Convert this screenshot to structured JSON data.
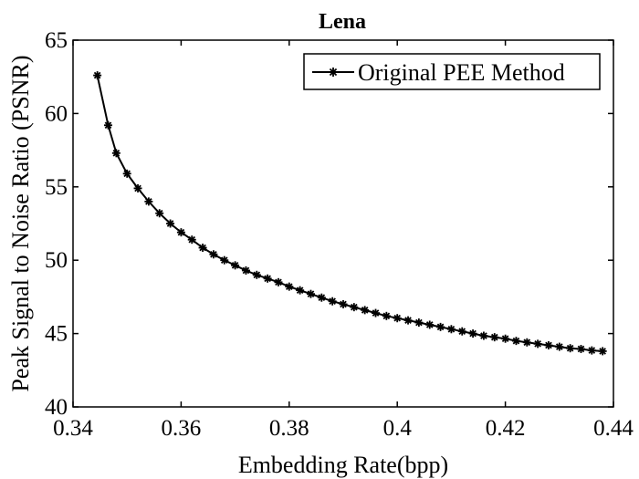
{
  "chart_data": {
    "type": "line",
    "title": "Lena",
    "xlabel": "Embedding Rate(bpp)",
    "ylabel": "Peak Signal to Noise Ratio (PSNR)",
    "xlim": [
      0.34,
      0.44
    ],
    "ylim": [
      40,
      65
    ],
    "xticks": [
      "0.34",
      "0.36",
      "0.38",
      "0.4",
      "0.42",
      "0.44"
    ],
    "yticks": [
      "40",
      "45",
      "50",
      "55",
      "60",
      "65"
    ],
    "grid": false,
    "legend_position": "top-right",
    "series": [
      {
        "name": "Original PEE Method",
        "color": "#000000",
        "marker": "asterisk",
        "x": [
          0.3445,
          0.3465,
          0.348,
          0.35,
          0.352,
          0.354,
          0.356,
          0.358,
          0.36,
          0.362,
          0.364,
          0.366,
          0.368,
          0.37,
          0.372,
          0.374,
          0.376,
          0.378,
          0.38,
          0.382,
          0.384,
          0.386,
          0.388,
          0.39,
          0.392,
          0.394,
          0.396,
          0.398,
          0.4,
          0.402,
          0.404,
          0.406,
          0.408,
          0.41,
          0.412,
          0.414,
          0.416,
          0.418,
          0.42,
          0.422,
          0.424,
          0.426,
          0.428,
          0.43,
          0.432,
          0.434,
          0.436,
          0.438
        ],
        "y": [
          62.6,
          59.2,
          57.3,
          55.9,
          54.9,
          54.0,
          53.2,
          52.5,
          51.9,
          51.4,
          50.85,
          50.4,
          50.0,
          49.65,
          49.3,
          49.0,
          48.75,
          48.5,
          48.2,
          47.95,
          47.7,
          47.45,
          47.2,
          47.0,
          46.8,
          46.6,
          46.4,
          46.2,
          46.05,
          45.9,
          45.75,
          45.6,
          45.45,
          45.3,
          45.15,
          45.0,
          44.85,
          44.75,
          44.65,
          44.5,
          44.4,
          44.3,
          44.2,
          44.1,
          44.0,
          43.95,
          43.85,
          43.8
        ]
      }
    ]
  }
}
